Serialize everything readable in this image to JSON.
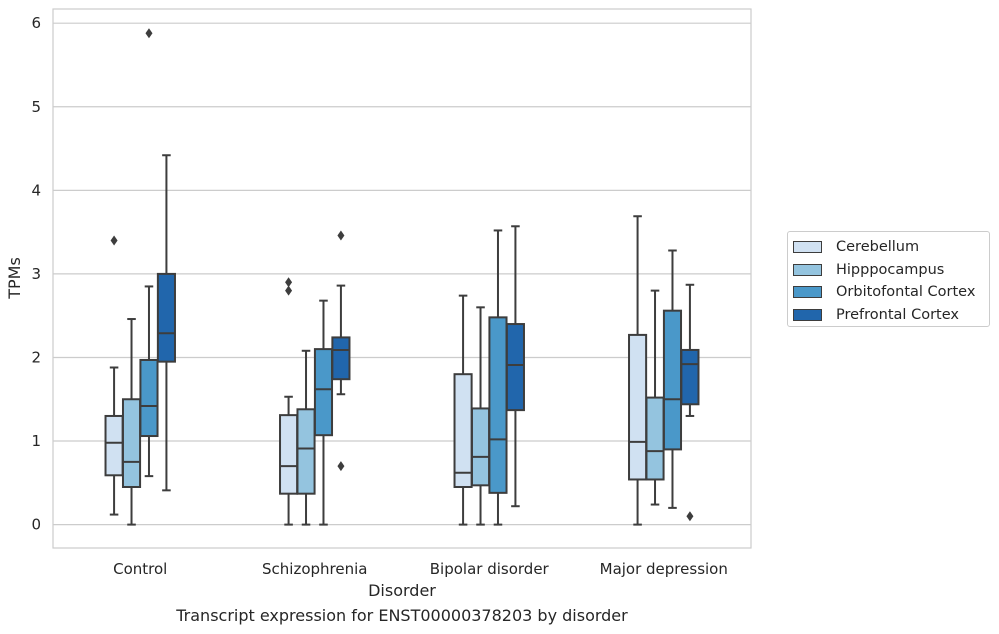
{
  "chart_data": {
    "type": "box",
    "title": "",
    "caption": "Transcript expression for ENST00000378203 by disorder",
    "xlabel": "Disorder",
    "ylabel": "TPMs",
    "ylim": [
      -0.28,
      6.17
    ],
    "yticks": [
      0,
      1,
      2,
      3,
      4,
      5,
      6
    ],
    "grid": true,
    "legend_position": "right",
    "categories": [
      "Control",
      "Schizophrenia",
      "Bipolar disorder",
      "Major depression"
    ],
    "series": [
      {
        "name": "Cerebellum",
        "color": "#d0e1f2",
        "boxes": [
          {
            "whisker_low": 0.12,
            "q1": 0.59,
            "median": 0.98,
            "q3": 1.3,
            "whisker_high": 1.88,
            "outliers": [
              3.4
            ]
          },
          {
            "whisker_low": 0.0,
            "q1": 0.37,
            "median": 0.7,
            "q3": 1.31,
            "whisker_high": 1.53,
            "outliers": [
              2.8,
              2.9
            ]
          },
          {
            "whisker_low": 0.0,
            "q1": 0.45,
            "median": 0.62,
            "q3": 1.8,
            "whisker_high": 2.74,
            "outliers": []
          },
          {
            "whisker_low": 0.0,
            "q1": 0.54,
            "median": 0.99,
            "q3": 2.27,
            "whisker_high": 3.69,
            "outliers": []
          }
        ]
      },
      {
        "name": "Hipppocampus",
        "color": "#94c4df",
        "boxes": [
          {
            "whisker_low": 0.0,
            "q1": 0.45,
            "median": 0.75,
            "q3": 1.5,
            "whisker_high": 2.46,
            "outliers": []
          },
          {
            "whisker_low": 0.0,
            "q1": 0.37,
            "median": 0.91,
            "q3": 1.38,
            "whisker_high": 2.08,
            "outliers": []
          },
          {
            "whisker_low": 0.0,
            "q1": 0.47,
            "median": 0.81,
            "q3": 1.39,
            "whisker_high": 2.6,
            "outliers": []
          },
          {
            "whisker_low": 0.24,
            "q1": 0.54,
            "median": 0.88,
            "q3": 1.52,
            "whisker_high": 2.8,
            "outliers": []
          }
        ]
      },
      {
        "name": "Orbitofontal Cortex",
        "color": "#4a98c9",
        "boxes": [
          {
            "whisker_low": 0.58,
            "q1": 1.06,
            "median": 1.42,
            "q3": 1.97,
            "whisker_high": 2.85,
            "outliers": [
              5.88
            ]
          },
          {
            "whisker_low": 0.0,
            "q1": 1.07,
            "median": 1.62,
            "q3": 2.1,
            "whisker_high": 2.68,
            "outliers": []
          },
          {
            "whisker_low": 0.0,
            "q1": 0.38,
            "median": 1.02,
            "q3": 2.48,
            "whisker_high": 3.52,
            "outliers": []
          },
          {
            "whisker_low": 0.2,
            "q1": 0.9,
            "median": 1.5,
            "q3": 2.56,
            "whisker_high": 3.28,
            "outliers": []
          }
        ]
      },
      {
        "name": "Prefrontal Cortex",
        "color": "#2166ac",
        "boxes": [
          {
            "whisker_low": 0.41,
            "q1": 1.95,
            "median": 2.29,
            "q3": 3.0,
            "whisker_high": 4.42,
            "outliers": []
          },
          {
            "whisker_low": 1.56,
            "q1": 1.74,
            "median": 2.09,
            "q3": 2.24,
            "whisker_high": 2.86,
            "outliers": [
              0.7,
              3.46
            ]
          },
          {
            "whisker_low": 0.22,
            "q1": 1.37,
            "median": 1.91,
            "q3": 2.4,
            "whisker_high": 3.57,
            "outliers": []
          },
          {
            "whisker_low": 1.3,
            "q1": 1.44,
            "median": 1.92,
            "q3": 2.09,
            "whisker_high": 2.87,
            "outliers": [
              0.1
            ]
          }
        ]
      }
    ]
  }
}
